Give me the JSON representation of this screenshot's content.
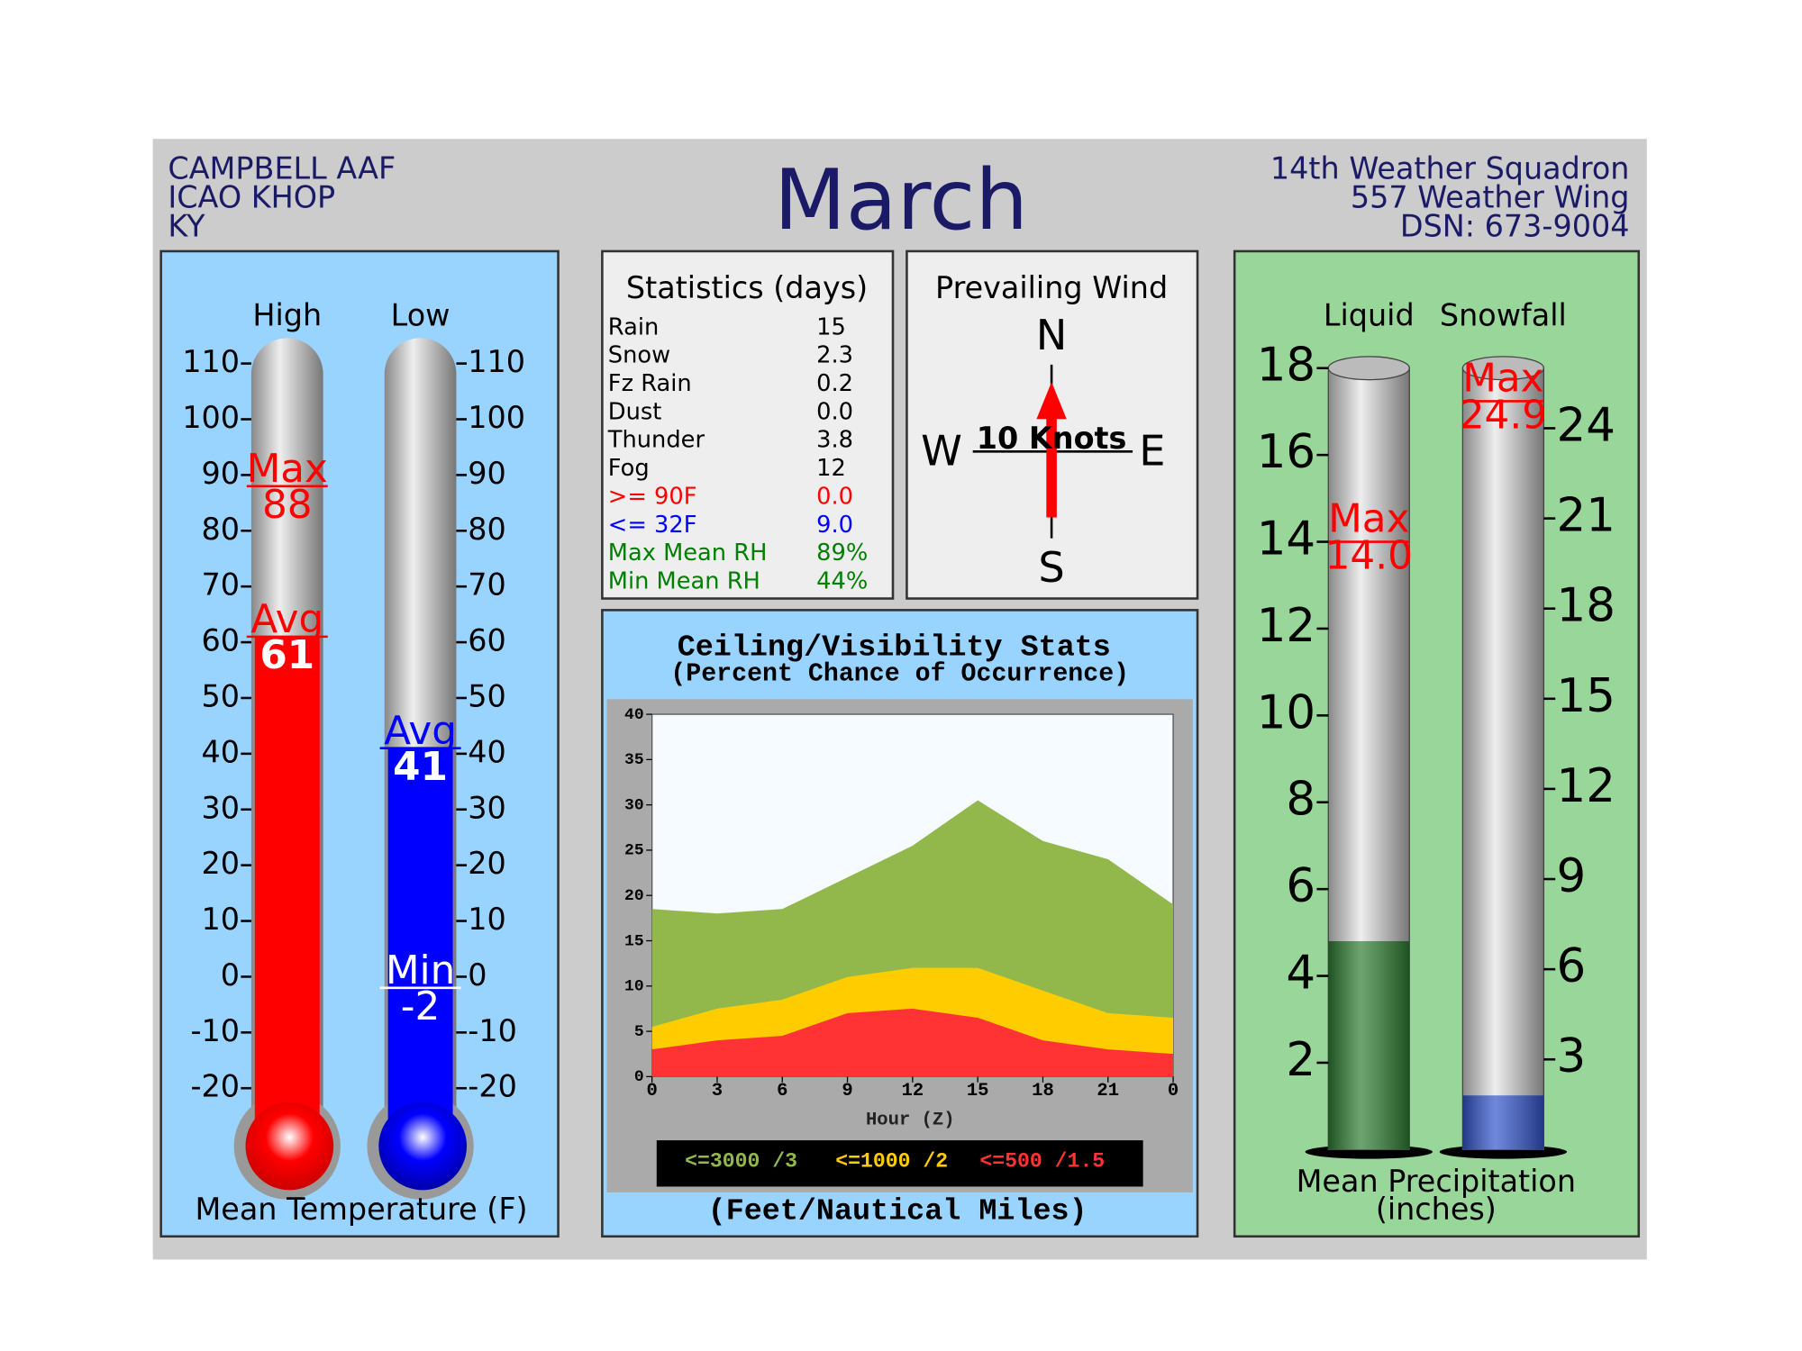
{
  "header": {
    "station": [
      "CAMPBELL AAF",
      "ICAO KHOP",
      "KY"
    ],
    "title": "March",
    "unit": [
      "14th Weather Squadron",
      "557 Weather Wing",
      "DSN: 673-9004"
    ]
  },
  "temperature": {
    "title": "Mean Temperature (F)",
    "ylim": [
      -20,
      110
    ],
    "yticks": [
      -20,
      -10,
      0,
      10,
      20,
      30,
      40,
      50,
      60,
      70,
      80,
      90,
      100,
      110
    ],
    "max_label": "Max",
    "avg_label": "Avg",
    "min_label": "Min",
    "high": {
      "name": "High",
      "color": "#ff0000",
      "max": 88,
      "avg": 61
    },
    "low": {
      "name": "Low",
      "color": "#0000ff",
      "avg": 41,
      "min": -2
    }
  },
  "statistics": {
    "title": "Statistics (days)",
    "rows": [
      {
        "label": "Rain",
        "value": "15",
        "color": "#000000"
      },
      {
        "label": "Snow",
        "value": "2.3",
        "color": "#000000"
      },
      {
        "label": "Fz Rain",
        "value": "0.2",
        "color": "#000000"
      },
      {
        "label": "Dust",
        "value": "0.0",
        "color": "#000000"
      },
      {
        "label": "Thunder",
        "value": "3.8",
        "color": "#000000"
      },
      {
        "label": "Fog",
        "value": "12",
        "color": "#000000"
      },
      {
        "label": ">= 90F",
        "value": "0.0",
        "color": "#ff0000"
      },
      {
        "label": "<= 32F",
        "value": "9.0",
        "color": "#0000ff"
      },
      {
        "label": "Max Mean RH",
        "value": "89%",
        "color": "#008000"
      },
      {
        "label": "Min Mean RH",
        "value": "44%",
        "color": "#008000"
      }
    ]
  },
  "wind": {
    "title": "Prevailing Wind",
    "directions": [
      "N",
      "E",
      "S",
      "W"
    ],
    "speed": "10 Knots"
  },
  "ceiling": {
    "type": "area",
    "title": "Ceiling/Visibility Stats",
    "subtitle": "(Percent Chance of Occurrence)",
    "x": [
      0,
      3,
      6,
      9,
      12,
      15,
      18,
      21,
      24
    ],
    "xlim": [
      0,
      24
    ],
    "xticks": [
      0,
      3,
      6,
      9,
      12,
      15,
      18,
      21,
      {
        "value": 24,
        "label": "0"
      }
    ],
    "xlabel": "Hour (Z)",
    "ylim": [
      0,
      40
    ],
    "yticks": [
      0,
      5,
      10,
      15,
      20,
      25,
      30,
      35,
      40
    ],
    "series": [
      {
        "name": "<=3000 /3",
        "color": "#92b84c",
        "values": [
          18.5,
          18,
          18.5,
          22,
          25.5,
          30.5,
          26,
          24,
          19
        ]
      },
      {
        "name": "<=1000 /2",
        "color": "#ffcc00",
        "values": [
          5.5,
          7.5,
          8.5,
          11,
          12,
          12,
          9.5,
          7,
          6.5
        ]
      },
      {
        "name": "<=500 /1.5",
        "color": "#ff3333",
        "values": [
          3,
          4,
          4.5,
          7,
          7.5,
          6.5,
          4,
          3,
          2.5
        ]
      }
    ],
    "footer": "(Feet/Nautical Miles)"
  },
  "precipitation": {
    "title": [
      "Mean Precipitation",
      "(inches)"
    ],
    "max_label": "Max",
    "liquid": {
      "name": "Liquid",
      "color": "#2e7d32",
      "ylim": [
        0,
        18
      ],
      "yticks": [
        2,
        4,
        6,
        8,
        10,
        12,
        14,
        16,
        18
      ],
      "mean": 4.8,
      "max": {
        "value": 14,
        "label": "14.0"
      }
    },
    "snowfall": {
      "name": "Snowfall",
      "color": "#3355cc",
      "ylim": [
        0,
        26
      ],
      "yticks": [
        3,
        6,
        9,
        12,
        15,
        18,
        21,
        24
      ],
      "mean": 1.8,
      "max": {
        "value": 24.9,
        "label": "24.9"
      }
    }
  }
}
